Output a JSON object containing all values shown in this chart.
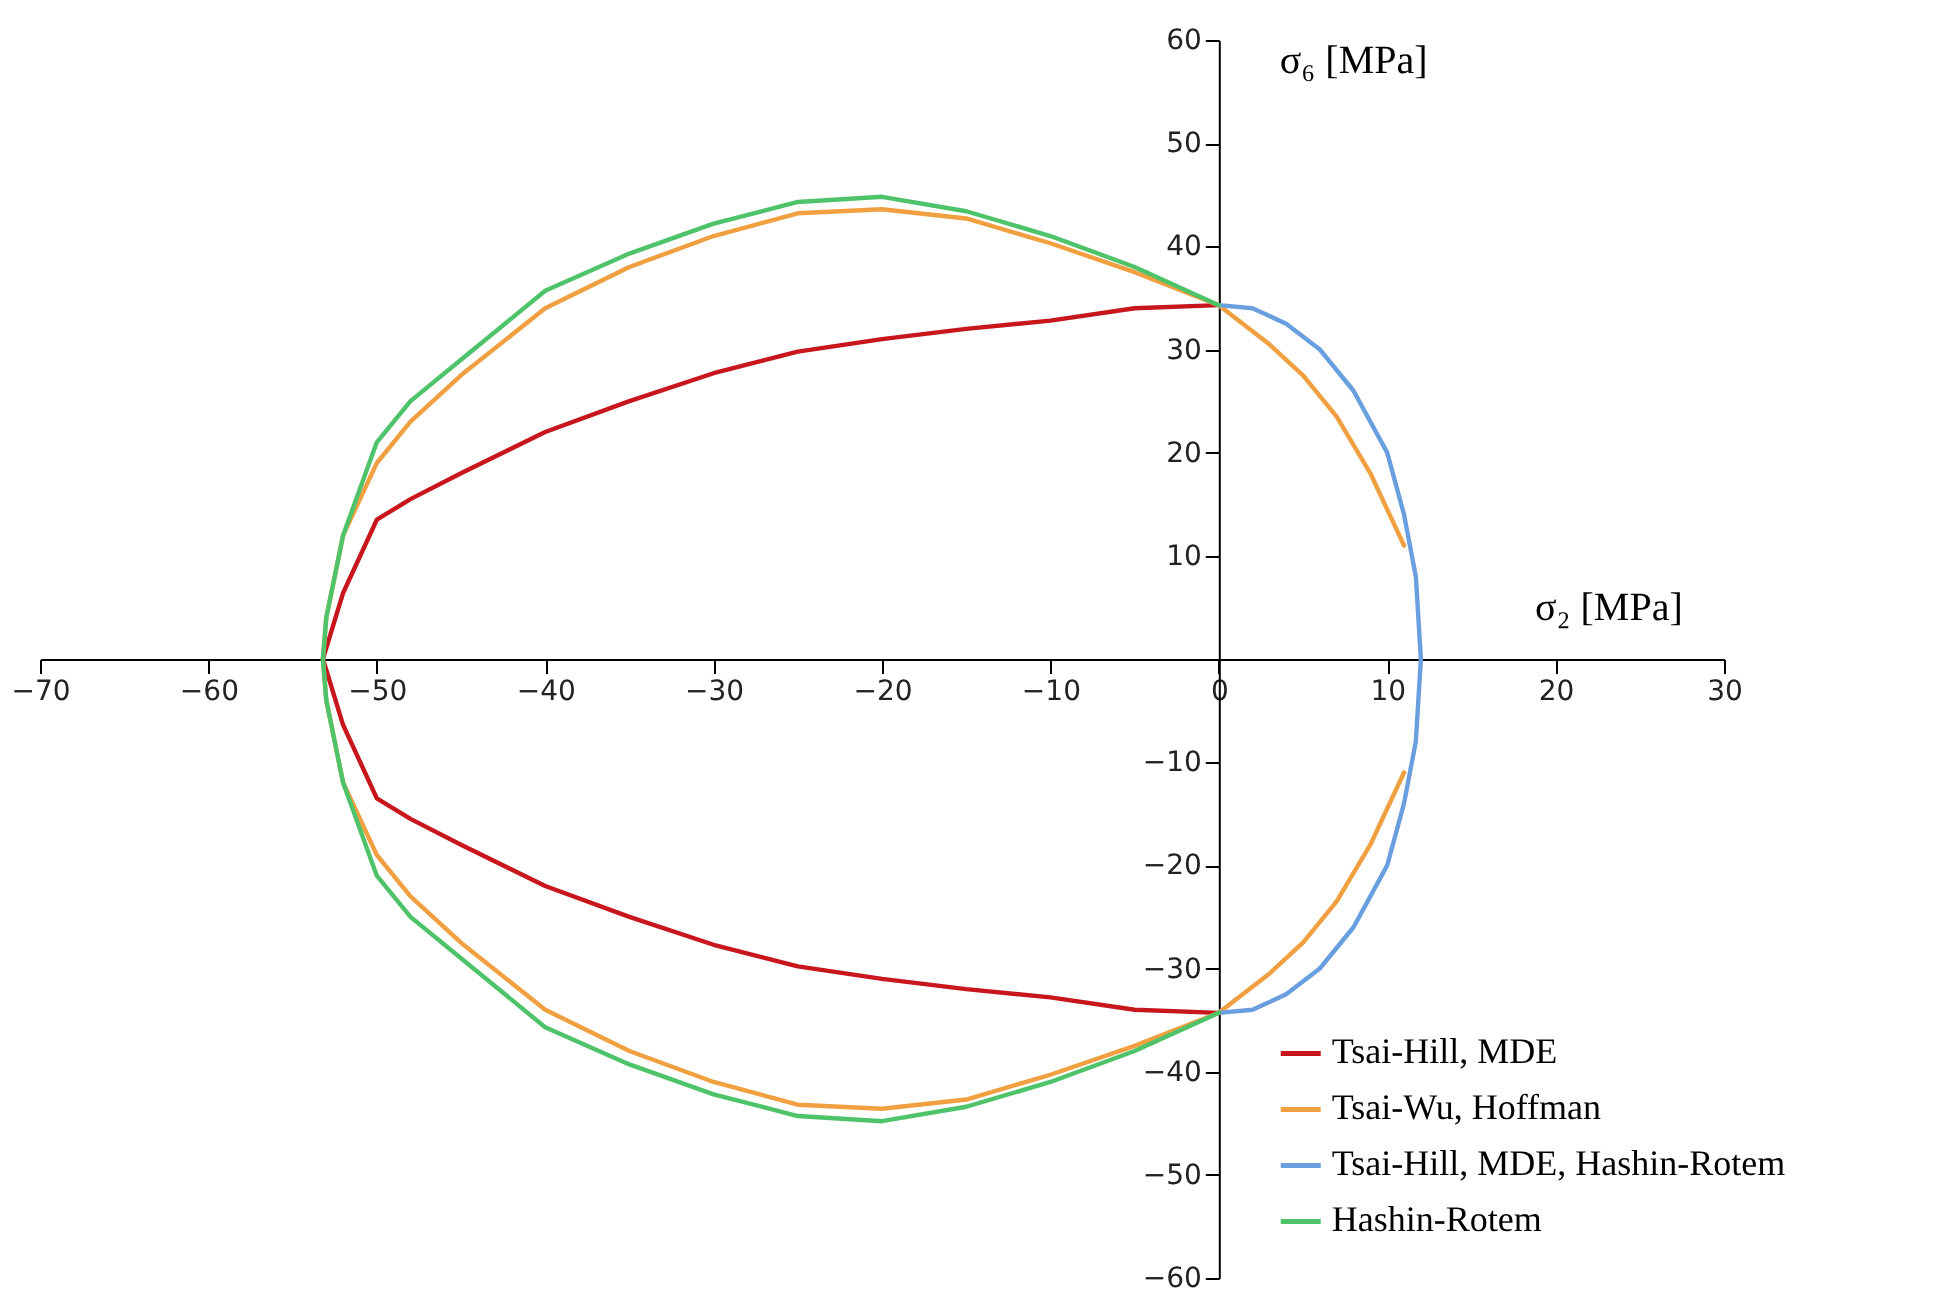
{
  "chart_data": {
    "type": "line",
    "xlabel": "σ₂ [MPa]",
    "ylabel": "σ₆ [MPa]",
    "xlim": [
      -70,
      30
    ],
    "ylim": [
      -60,
      60
    ],
    "xticks": [
      -70,
      -60,
      -50,
      -40,
      -30,
      -20,
      -10,
      0,
      10,
      20,
      30
    ],
    "yticks": [
      -60,
      -50,
      -40,
      -30,
      -20,
      -10,
      10,
      20,
      30,
      40,
      50,
      60
    ],
    "grid": false,
    "legend": "bottom right",
    "line_style": "solid",
    "marker": "none",
    "series": [
      {
        "name": "Tsai-Hill, MDE",
        "color": "#c8161d",
        "x": [
          0,
          -5,
          -10,
          -15,
          -20,
          -25,
          -30,
          -35,
          -40,
          -45,
          -48,
          -50,
          -52,
          -53.2,
          -52,
          -50,
          -48,
          -45,
          -40,
          -35,
          -30,
          -25,
          -20,
          -15,
          -10,
          -5,
          0
        ],
        "values": [
          34.3,
          34,
          32.8,
          32,
          31,
          29.8,
          27.7,
          25,
          22,
          18,
          15.5,
          13.5,
          6.4,
          0,
          -6.4,
          -13.5,
          -15.5,
          -18,
          -22,
          -25,
          -27.7,
          -29.8,
          -31,
          -32,
          -32.8,
          -34,
          -34.3
        ]
      },
      {
        "name": "Tsai-Wu, Hoffman",
        "color": "#f0a040",
        "x": [
          11,
          9,
          7,
          5,
          3,
          0,
          -5,
          -10,
          -15,
          -20,
          -25,
          -30,
          -35,
          -40,
          -45,
          -48,
          -50,
          -52,
          -53,
          -53.2,
          -53,
          -52,
          -50,
          -48,
          -45,
          -40,
          -35,
          -30,
          -25,
          -20,
          -15,
          -10,
          -5,
          0,
          3,
          5,
          7,
          9,
          11
        ],
        "values": [
          11,
          18,
          23.5,
          27.5,
          30.5,
          34.3,
          37.5,
          40.3,
          42.7,
          43.6,
          43.2,
          41,
          38,
          34,
          27.5,
          23,
          19,
          12,
          4,
          0,
          -4,
          -12,
          -19,
          -23,
          -27.5,
          -34,
          -38,
          -41,
          -43.2,
          -43.6,
          -42.7,
          -40.3,
          -37.5,
          -34.3,
          -30.5,
          -27.5,
          -23.5,
          -18,
          -11
        ]
      },
      {
        "name": "Tsai-Hill, MDE, Hashin-Rotem",
        "color": "#6a9fdf",
        "x": [
          0,
          2,
          4,
          6,
          8,
          10,
          11,
          11.7,
          12,
          11.7,
          11,
          10,
          8,
          6,
          4,
          2,
          0
        ],
        "values": [
          34.3,
          34,
          32.5,
          30,
          26,
          20,
          14,
          8,
          0,
          -8,
          -14,
          -20,
          -26,
          -30,
          -32.5,
          -34,
          -34.3
        ]
      },
      {
        "name": "Hashin-Rotem",
        "color": "#4ec36a",
        "x": [
          0,
          -5,
          -10,
          -15,
          -20,
          -25,
          -30,
          -35,
          -40,
          -45,
          -48,
          -50,
          -52,
          -53,
          -53.2,
          -53,
          -52,
          -50,
          -48,
          -45,
          -40,
          -35,
          -30,
          -25,
          -20,
          -15,
          -10,
          -5,
          0
        ],
        "values": [
          34.3,
          38,
          41,
          43.4,
          44.8,
          44.3,
          42.2,
          39.3,
          35.7,
          29,
          25,
          21,
          12,
          4,
          0,
          -4,
          -12,
          -21,
          -25,
          -29,
          -35.7,
          -39.3,
          -42.2,
          -44.3,
          -44.8,
          -43.4,
          -41,
          -38,
          -34.3
        ]
      }
    ]
  }
}
